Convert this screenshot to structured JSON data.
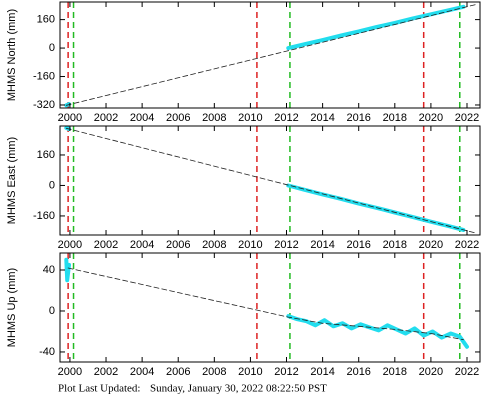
{
  "chart_data": [
    {
      "type": "line",
      "ylabel": "MHMS North (mm)",
      "xlim": [
        1999.45,
        2022.72
      ],
      "xticks": [
        2000,
        2002,
        2004,
        2006,
        2008,
        2010,
        2012,
        2014,
        2016,
        2018,
        2020,
        2022
      ],
      "ylim": [
        -337,
        259
      ],
      "yticks": [
        160,
        0,
        -160,
        -320
      ],
      "vlines": [
        {
          "x": 1999.9,
          "color": "#dd2222"
        },
        {
          "x": 2000.2,
          "color": "#22bb22"
        },
        {
          "x": 2010.36,
          "color": "#dd2222"
        },
        {
          "x": 2012.19,
          "color": "#22bb22"
        },
        {
          "x": 2019.6,
          "color": "#dd2222"
        },
        {
          "x": 2021.6,
          "color": "#22bb22"
        }
      ],
      "series": [
        {
          "color": "#22ddee",
          "dash": false,
          "x": [
            1999.8,
            1999.95,
            2006,
            2012.1,
            2013,
            2014,
            2015,
            2016,
            2017,
            2018,
            2019,
            2020,
            2021,
            2021.8
          ],
          "values": [
            -322,
            -315,
            null,
            0,
            22,
            45,
            70,
            93,
            119,
            141,
            167,
            190,
            213,
            232
          ]
        },
        {
          "color": "#222222",
          "dash": true,
          "x": [
            1999.8,
            2022.5
          ],
          "values": [
            -322,
            245
          ]
        }
      ]
    },
    {
      "type": "line",
      "ylabel": "MHMS East (mm)",
      "xlim": [
        1999.45,
        2022.72
      ],
      "xticks": [
        2000,
        2002,
        2004,
        2006,
        2008,
        2010,
        2012,
        2014,
        2016,
        2018,
        2020,
        2022
      ],
      "ylim": [
        -260,
        312
      ],
      "yticks": [
        160,
        0,
        -160
      ],
      "vlines": [
        {
          "x": 1999.9,
          "color": "#dd2222"
        },
        {
          "x": 2000.2,
          "color": "#22bb22"
        },
        {
          "x": 2010.36,
          "color": "#dd2222"
        },
        {
          "x": 2012.19,
          "color": "#22bb22"
        },
        {
          "x": 2019.6,
          "color": "#dd2222"
        },
        {
          "x": 2021.6,
          "color": "#22bb22"
        }
      ],
      "series": [
        {
          "color": "#22ddee",
          "dash": false,
          "x": [
            1999.8,
            1999.95,
            2006,
            2012.1,
            2013,
            2014,
            2015,
            2016,
            2017,
            2018,
            2019,
            2020,
            2021,
            2021.8
          ],
          "values": [
            302,
            296,
            null,
            0,
            -23,
            -47,
            -70,
            -95,
            -118,
            -142,
            -166,
            -190,
            -214,
            -233
          ]
        },
        {
          "color": "#222222",
          "dash": true,
          "x": [
            1999.8,
            2022.5
          ],
          "values": [
            300,
            -250
          ]
        }
      ]
    },
    {
      "type": "line",
      "ylabel": "MHMS Up (mm)",
      "xlim": [
        1999.45,
        2022.72
      ],
      "xticks": [
        2000,
        2002,
        2004,
        2006,
        2008,
        2010,
        2012,
        2014,
        2016,
        2018,
        2020,
        2022
      ],
      "ylim": [
        -49.8,
        56.6
      ],
      "yticks": [
        40,
        0,
        -40
      ],
      "vlines": [
        {
          "x": 1999.9,
          "color": "#dd2222"
        },
        {
          "x": 2000.2,
          "color": "#22bb22"
        },
        {
          "x": 2010.36,
          "color": "#dd2222"
        },
        {
          "x": 2012.19,
          "color": "#22bb22"
        },
        {
          "x": 2019.6,
          "color": "#dd2222"
        },
        {
          "x": 2021.6,
          "color": "#22bb22"
        }
      ],
      "series": [
        {
          "color": "#22ddee",
          "dash": false,
          "x": [
            1999.8,
            1999.85,
            1999.95,
            2006,
            2012.1,
            2012.6,
            2013.1,
            2013.6,
            2014.1,
            2014.6,
            2015.1,
            2015.6,
            2016.1,
            2016.6,
            2017.1,
            2017.6,
            2018.1,
            2018.6,
            2019.1,
            2019.6,
            2020.1,
            2020.6,
            2021.1,
            2021.6,
            2021.8,
            2022.0
          ],
          "values": [
            50,
            30,
            45,
            null,
            -5,
            -8,
            -10,
            -14,
            -9,
            -15,
            -12,
            -17,
            -13,
            -16,
            -19,
            -14,
            -18,
            -22,
            -17,
            -24,
            -20,
            -26,
            -22,
            -25,
            -30,
            -35
          ]
        },
        {
          "color": "#222222",
          "dash": true,
          "x": [
            1999.9,
            2012.1,
            2014,
            2016,
            2018,
            2020,
            2021.8
          ],
          "values": [
            42,
            -6,
            -12,
            -15,
            -18,
            -22,
            -28
          ]
        }
      ]
    }
  ],
  "footer": {
    "label": "Plot Last Updated:",
    "timestamp": "Sunday, January 30, 2022 08:22:50 PST"
  }
}
